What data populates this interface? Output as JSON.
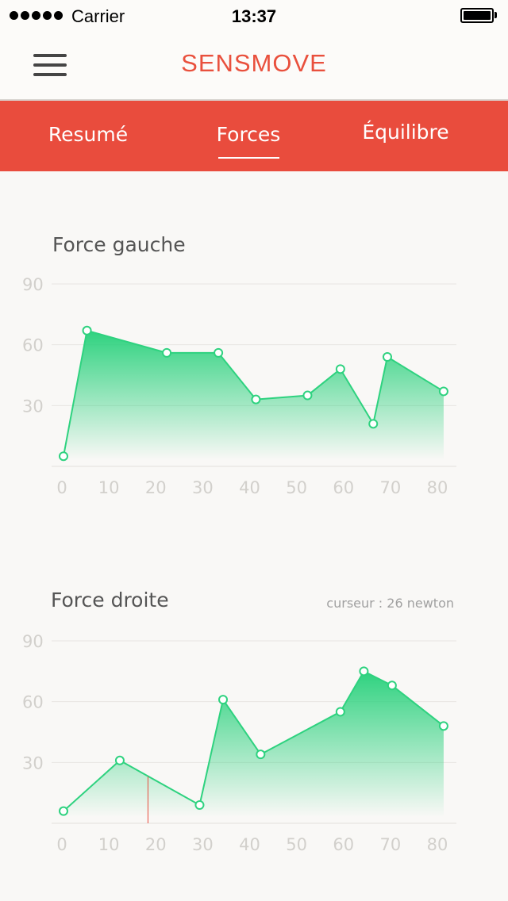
{
  "status_bar": {
    "carrier": "Carrier",
    "time": "13:37"
  },
  "header": {
    "title": "SENSMOVE"
  },
  "tabs": [
    {
      "label": "Resumé",
      "active": false
    },
    {
      "label": "Forces",
      "active": true
    },
    {
      "label": "Équilibre",
      "active": false
    }
  ],
  "colors": {
    "accent": "#e94c3d",
    "line": "#2ed27f",
    "fill": "#2ed27f",
    "cursor": "#e94c3d"
  },
  "chart_data": [
    {
      "type": "area",
      "title": "Force gauche",
      "xlabel": "",
      "ylabel": "",
      "xlim": [
        0,
        80
      ],
      "ylim": [
        0,
        90
      ],
      "x_ticks": [
        0,
        10,
        20,
        30,
        40,
        50,
        60,
        70,
        80
      ],
      "y_ticks": [
        30,
        60,
        90
      ],
      "grid": true,
      "series": [
        {
          "x": [
            0,
            5,
            22,
            33,
            41,
            52,
            59,
            66,
            69,
            81
          ],
          "y": [
            5,
            67,
            56,
            56,
            33,
            35,
            48,
            21,
            54,
            37
          ]
        }
      ]
    },
    {
      "type": "area",
      "title": "Force droite",
      "cursor_label": "curseur : 26 newton",
      "cursor_x": 18,
      "xlabel": "",
      "ylabel": "",
      "xlim": [
        0,
        80
      ],
      "ylim": [
        0,
        90
      ],
      "x_ticks": [
        0,
        10,
        20,
        30,
        40,
        50,
        60,
        70,
        80
      ],
      "y_ticks": [
        30,
        60,
        90
      ],
      "grid": true,
      "series": [
        {
          "x": [
            0,
            12,
            29,
            34,
            42,
            59,
            64,
            70,
            81
          ],
          "y": [
            6,
            31,
            9,
            61,
            34,
            55,
            75,
            68,
            48
          ]
        }
      ]
    }
  ]
}
